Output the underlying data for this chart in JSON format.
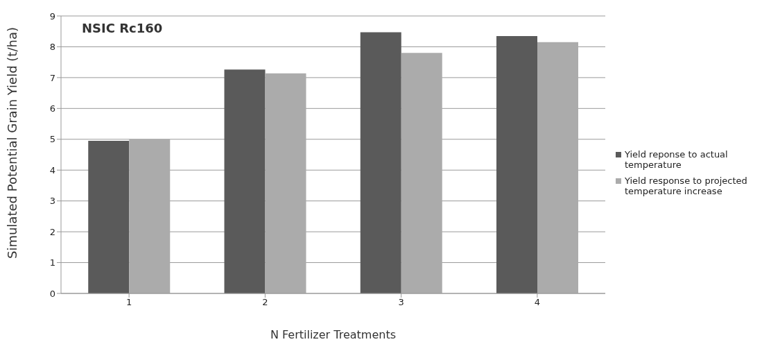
{
  "chart_data": {
    "type": "bar",
    "title": "NSIC Rc160",
    "xlabel": "N Fertilizer Treatments",
    "ylabel": "Simulated Potential Grain Yield (t/ha)",
    "categories": [
      "1",
      "2",
      "3",
      "4"
    ],
    "series": [
      {
        "name": "Yield reponse to actual temperature",
        "color": "#5a5a5a",
        "values": [
          4.95,
          7.26,
          8.47,
          8.35
        ]
      },
      {
        "name": "Yield response to projected temperature increase",
        "color": "#ababab",
        "values": [
          5.0,
          7.14,
          7.8,
          8.15
        ]
      }
    ],
    "ylim": [
      0,
      9
    ],
    "yticks": [
      0,
      1,
      2,
      3,
      4,
      5,
      6,
      7,
      8,
      9
    ],
    "grid": "y",
    "legend": "right"
  }
}
